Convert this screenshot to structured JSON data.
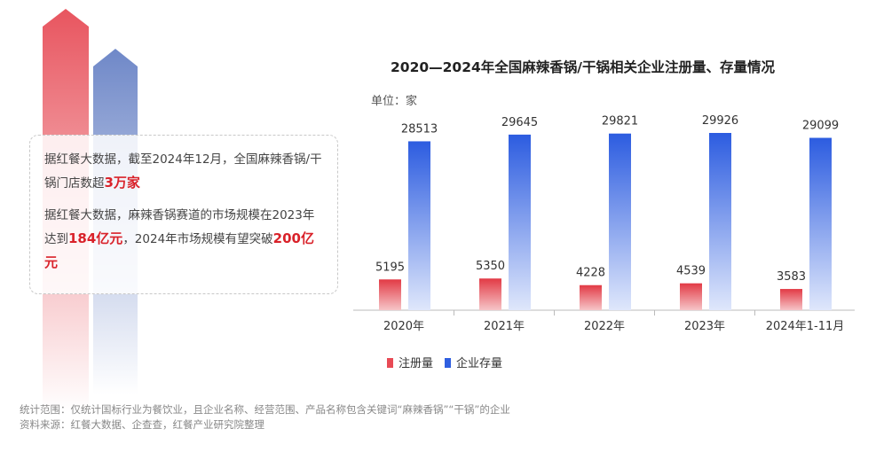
{
  "text_box": {
    "para1_prefix": "据红餐大数据，截至2024年12月，全国麻辣香锅/干锅门店数超",
    "para1_highlight": "3万家",
    "para2_prefix": "据红餐大数据，麻辣香锅赛道的市场规模在2023年达到",
    "para2_highlight1": "184亿元",
    "para2_middle": "，2024年市场规模有望突破",
    "para2_highlight2": "200亿元"
  },
  "notes": {
    "scope": "统计范围：仅统计国标行业为餐饮业，且企业名称、经营范围、产品名称包含关键词“麻辣香锅”“干锅”的企业",
    "source": "资料来源：红餐大数据、企查查，红餐产业研究院整理"
  },
  "colors": {
    "highlight": "#d9222a",
    "series_red": "#e84a55",
    "series_blue": "#2f5fe0"
  },
  "chart_data": {
    "type": "bar",
    "title": "2020—2024年全国麻辣香锅/干锅相关企业注册量、存量情况",
    "unit_label": "单位：家",
    "categories": [
      "2020年",
      "2021年",
      "2022年",
      "2023年",
      "2024年1-11月"
    ],
    "series": [
      {
        "name": "注册量",
        "values": [
          5195,
          5350,
          4228,
          4539,
          3583
        ]
      },
      {
        "name": "企业存量",
        "values": [
          28513,
          29645,
          29821,
          29926,
          29099
        ]
      }
    ],
    "ylim": [
      0,
      30000
    ],
    "grid": false,
    "legend": "bottom"
  }
}
